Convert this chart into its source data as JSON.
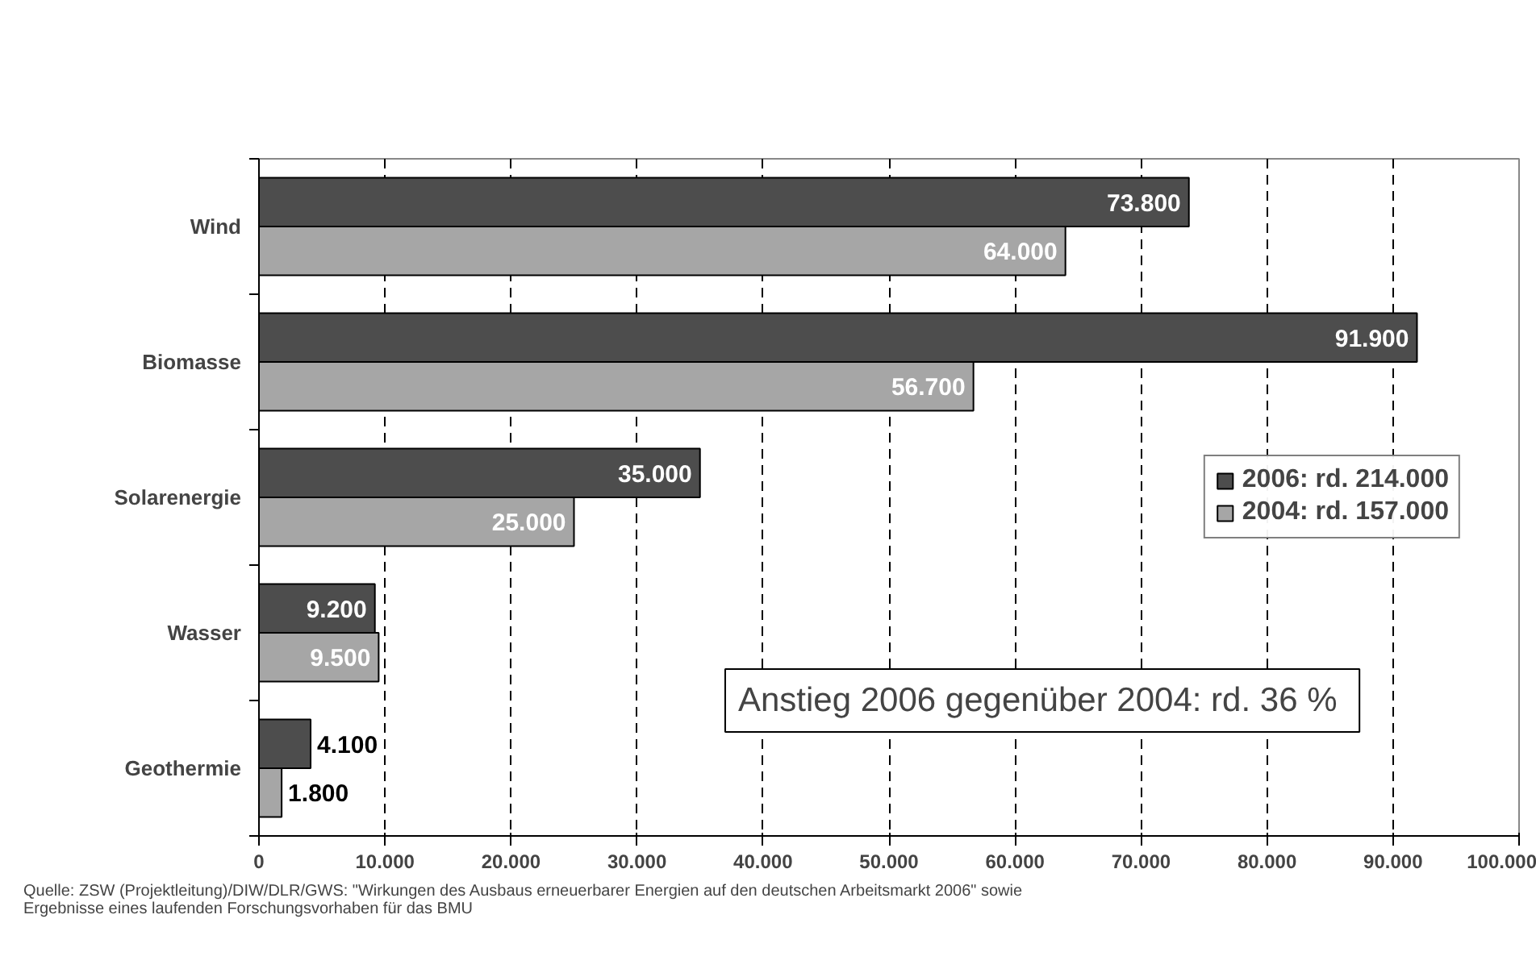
{
  "chart_data": {
    "type": "bar",
    "orientation": "horizontal",
    "categories": [
      "Wind",
      "Biomasse",
      "Solarenergie",
      "Wasser",
      "Geothermie"
    ],
    "series": [
      {
        "name": "2006: rd. 214.000",
        "color": "#4d4d4d",
        "values": [
          73800,
          91900,
          35000,
          9200,
          4100
        ],
        "value_labels": [
          "73.800",
          "91.900",
          "35.000",
          "9.200",
          "4.100"
        ]
      },
      {
        "name": "2004: rd. 157.000",
        "color": "#a6a6a6",
        "values": [
          64000,
          56700,
          25000,
          9500,
          1800
        ],
        "value_labels": [
          "64.000",
          "56.700",
          "25.000",
          "9.500",
          "1.800"
        ]
      }
    ],
    "xlim": [
      0,
      100000
    ],
    "xticks": [
      {
        "value": 0,
        "label": "0"
      },
      {
        "value": 10000,
        "label": "10.000"
      },
      {
        "value": 20000,
        "label": "20.000"
      },
      {
        "value": 30000,
        "label": "30.000"
      },
      {
        "value": 40000,
        "label": "40.000"
      },
      {
        "value": 50000,
        "label": "50.000"
      },
      {
        "value": 60000,
        "label": "60.000"
      },
      {
        "value": 70000,
        "label": "70.000"
      },
      {
        "value": 80000,
        "label": "80.000"
      },
      {
        "value": 90000,
        "label": "90.000"
      },
      {
        "value": 100000,
        "label": "100.000"
      }
    ],
    "grid": "x",
    "legend": "right",
    "annotations": [
      "Anstieg 2006 gegenüber 2004:  rd. 36 %",
      "Quelle: ZSW (Projektleitung)/DIW/DLR/GWS: \"Wirkungen des Ausbaus erneuerbarer Energien auf den deutschen Arbeitsmarkt 2006\" sowie\n            Ergebnisse eines laufenden Forschungsvorhaben für das BMU"
    ]
  }
}
